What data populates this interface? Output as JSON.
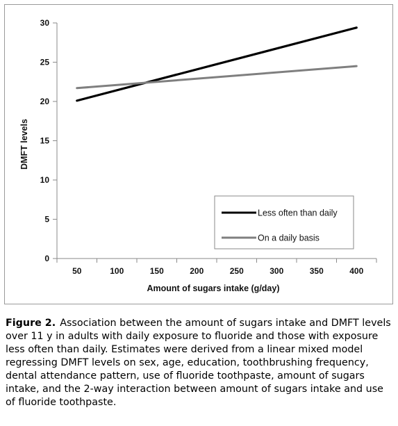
{
  "chart_data": {
    "type": "line",
    "xlabel": "Amount of sugars intake (g/day)",
    "ylabel": "DMFT levels",
    "x_ticks": [
      50,
      100,
      150,
      200,
      250,
      300,
      350,
      400
    ],
    "y_ticks": [
      0,
      5,
      10,
      15,
      20,
      25,
      30
    ],
    "xlim": [
      25,
      425
    ],
    "ylim": [
      0,
      30
    ],
    "grid": false,
    "legend_position": "bottom-right",
    "series": [
      {
        "name": "Less often than daily",
        "color": "#000000",
        "x": [
          50,
          400
        ],
        "y": [
          20.1,
          29.4
        ]
      },
      {
        "name": "On a daily basis",
        "color": "#7f7f7f",
        "x": [
          50,
          400
        ],
        "y": [
          21.7,
          24.5
        ]
      }
    ]
  },
  "caption": {
    "label": "Figure 2.",
    "text": "Association between the amount of sugars intake and DMFT levels over 11 y in adults with daily exposure to fluoride and those with exposure less often than daily. Estimates were derived from a linear mixed model regressing DMFT levels on sex, age, education, toothbrushing frequency, dental attendance pattern, use of fluoride toothpaste, amount of sugars intake, and the 2-way interaction between amount of sugars intake and use of fluoride toothpaste."
  }
}
